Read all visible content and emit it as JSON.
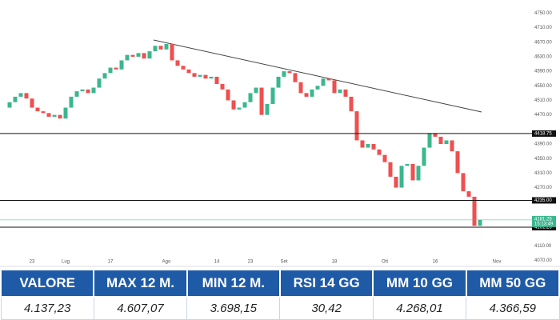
{
  "chart_data": {
    "type": "candlestick",
    "categories": [
      null,
      null,
      null,
      null,
      "23",
      null,
      null,
      null,
      null,
      null,
      "Lug",
      null,
      null,
      null,
      null,
      null,
      null,
      null,
      "17",
      null,
      null,
      null,
      null,
      null,
      null,
      null,
      null,
      null,
      "Ago",
      null,
      null,
      null,
      null,
      null,
      null,
      null,
      null,
      "14",
      null,
      null,
      null,
      null,
      null,
      "23",
      null,
      null,
      null,
      null,
      null,
      "Set",
      null,
      null,
      null,
      null,
      null,
      null,
      null,
      null,
      "18",
      null,
      null,
      null,
      null,
      null,
      null,
      null,
      null,
      "Ott",
      null,
      null,
      null,
      null,
      null,
      null,
      null,
      null,
      "16",
      null,
      null,
      null,
      null,
      null,
      null,
      null,
      null,
      null,
      null,
      "Nov"
    ],
    "open": [
      4490,
      4505,
      4520,
      4530,
      4515,
      4490,
      4480,
      4475,
      4465,
      4470,
      4460,
      4490,
      4520,
      4535,
      4540,
      4530,
      4545,
      4570,
      4585,
      4600,
      4595,
      4620,
      4635,
      4630,
      4640,
      4625,
      4645,
      4660,
      4650,
      4665,
      4620,
      4605,
      4595,
      4585,
      4575,
      4580,
      4570,
      4575,
      4555,
      4540,
      4510,
      4485,
      4490,
      4505,
      4530,
      4545,
      4470,
      4500,
      4545,
      4575,
      4590,
      4585,
      4560,
      4530,
      4520,
      4540,
      4550,
      4570,
      4565,
      4530,
      4540,
      4520,
      4480,
      4400,
      4380,
      4390,
      4375,
      4360,
      4340,
      4300,
      4270,
      4330,
      4335,
      4290,
      4330,
      4380,
      4420,
      4410,
      4390,
      4400,
      4370,
      4310,
      4260,
      4245,
      4165,
      null,
      null,
      null
    ],
    "close": [
      4505,
      4520,
      4530,
      4515,
      4490,
      4480,
      4475,
      4465,
      4470,
      4460,
      4490,
      4520,
      4535,
      4540,
      4530,
      4545,
      4570,
      4585,
      4600,
      4595,
      4620,
      4635,
      4630,
      4640,
      4625,
      4645,
      4660,
      4650,
      4665,
      4620,
      4605,
      4595,
      4585,
      4575,
      4580,
      4570,
      4575,
      4555,
      4540,
      4510,
      4485,
      4490,
      4505,
      4530,
      4545,
      4470,
      4500,
      4545,
      4575,
      4590,
      4585,
      4560,
      4530,
      4520,
      4540,
      4550,
      4570,
      4565,
      4530,
      4540,
      4520,
      4480,
      4400,
      4380,
      4390,
      4375,
      4360,
      4340,
      4300,
      4270,
      4330,
      4335,
      4290,
      4330,
      4380,
      4420,
      4410,
      4390,
      4400,
      4370,
      4310,
      4260,
      4245,
      4165,
      4181.25,
      null,
      null,
      null
    ],
    "up_color": "#3bb78f",
    "down_color": "#ef4f4f",
    "ylim": [
      4060,
      4786
    ],
    "yticks": [
      {
        "value": 4750,
        "label": "4750.00"
      },
      {
        "value": 4710,
        "label": "4710.00"
      },
      {
        "value": 4670,
        "label": "4670.00"
      },
      {
        "value": 4630,
        "label": "4630.00"
      },
      {
        "value": 4590,
        "label": "4590.00"
      },
      {
        "value": 4550,
        "label": "4550.00"
      },
      {
        "value": 4510,
        "label": "4510.00"
      },
      {
        "value": 4470,
        "label": "4470.00"
      },
      {
        "value": 4390,
        "label": "4390.00"
      },
      {
        "value": 4350,
        "label": "4350.00"
      },
      {
        "value": 4310,
        "label": "4310.00"
      },
      {
        "value": 4270,
        "label": "4270.00"
      },
      {
        "value": 4110,
        "label": "4110.00"
      },
      {
        "value": 4070,
        "label": "4070.00"
      }
    ],
    "levels": [
      {
        "value": 4418.75,
        "label": "4418.75"
      },
      {
        "value": 4235,
        "label": "4235.00"
      },
      {
        "value": 4161.25,
        "label": "4161.25"
      }
    ],
    "current": {
      "value": 4181.25,
      "label": "4181.25",
      "time": "15:13:49"
    },
    "grid": false
  },
  "table": {
    "headers": [
      "VALORE",
      "MAX 12 M.",
      "MIN 12 M.",
      "RSI 14 GG",
      "MM 10 GG",
      "MM 50 GG"
    ],
    "rows": [
      [
        "4.137,23",
        "4.607,07",
        "3.698,15",
        "30,42",
        "4.268,01",
        "4.366,59"
      ]
    ]
  }
}
